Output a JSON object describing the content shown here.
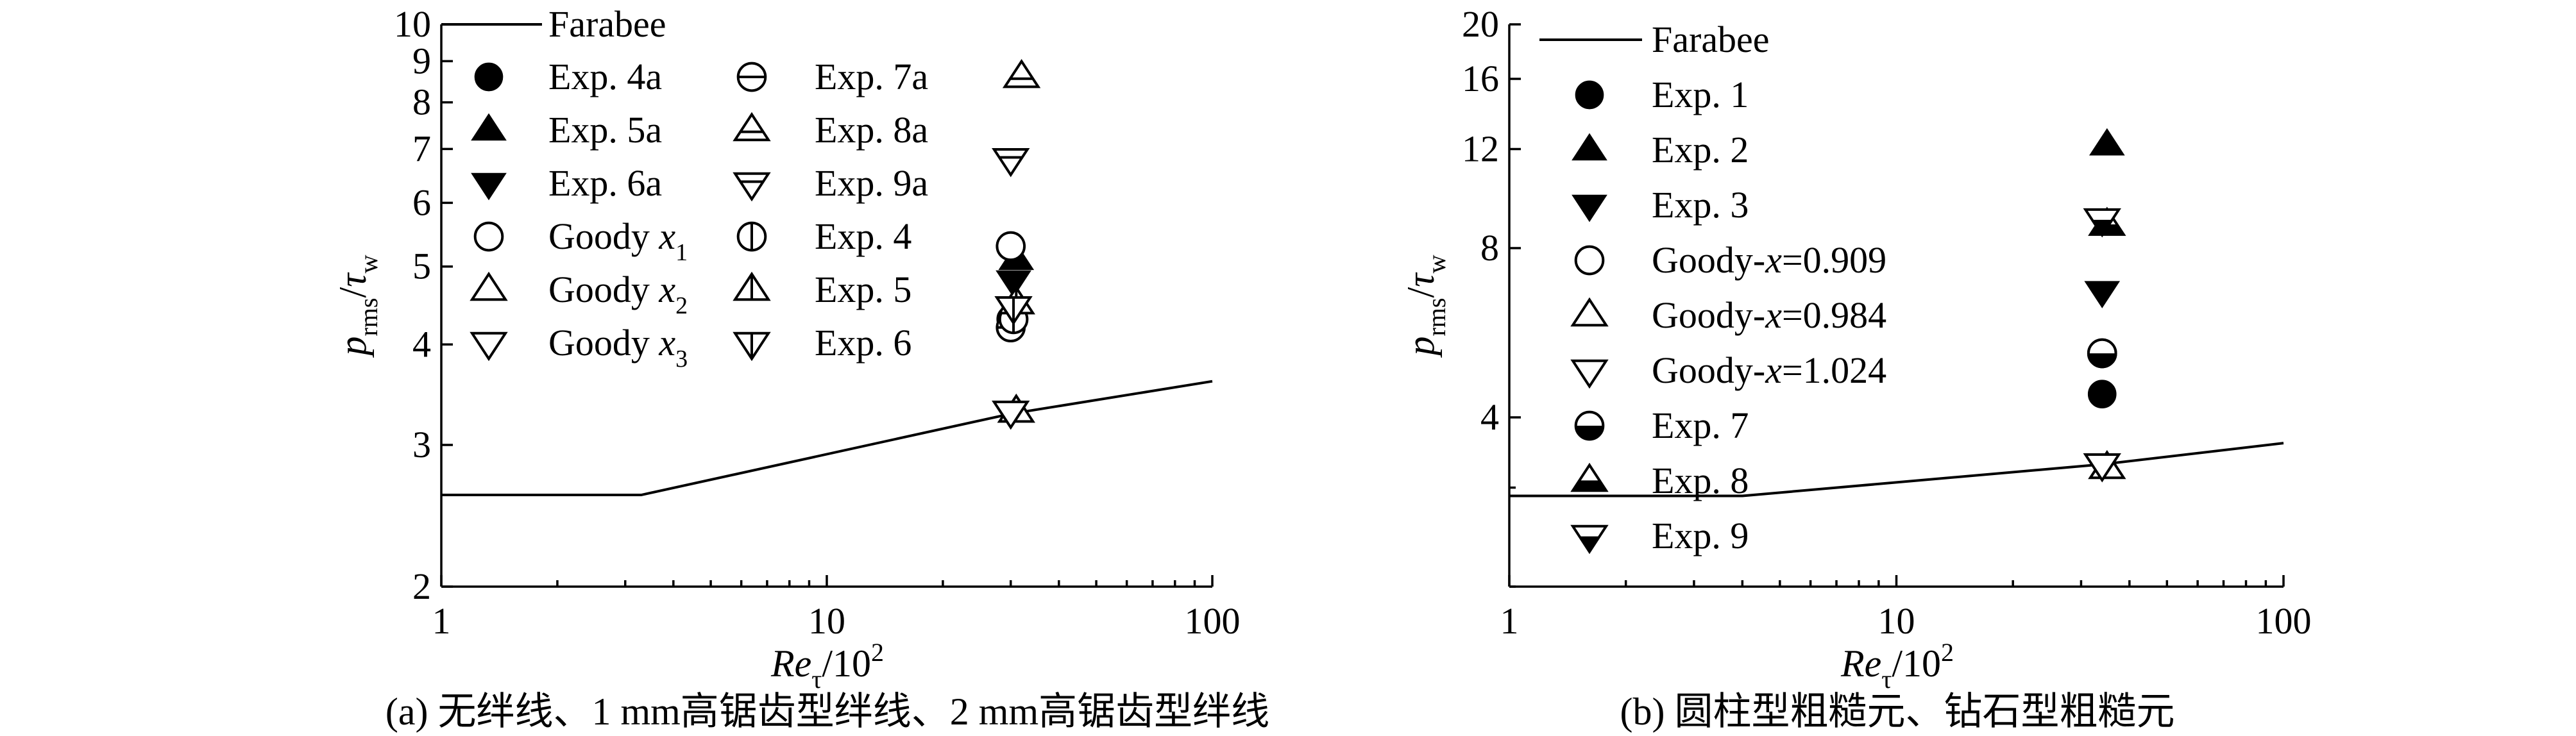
{
  "chart_data": [
    {
      "type": "scatter",
      "panel_caption": "(a) 无绊线、1 mm高锯齿型绊线、2 mm高锯齿型绊线",
      "xlabel": {
        "main": "Re",
        "sub": "τ",
        "tail": "/10",
        "sup": "2"
      },
      "ylabel": {
        "main": "p",
        "sub1": "rms",
        "slash": "/",
        "tau": "τ",
        "sub2": "w"
      },
      "x_scale": "log",
      "y_scale": "log",
      "xlim": [
        1,
        100
      ],
      "ylim": [
        2,
        10
      ],
      "x_ticks": [
        "1",
        "10",
        "100"
      ],
      "y_ticks": [
        "2",
        "3",
        "4",
        "5",
        "6",
        "7",
        "8",
        "9",
        "10"
      ],
      "grid": false,
      "legend_position": "top-left, inside, two columns",
      "curve": {
        "name": "Farabee",
        "points": [
          [
            1,
            2.6
          ],
          [
            3.3,
            2.6
          ],
          [
            30,
            3.28
          ],
          [
            100,
            3.6
          ]
        ]
      },
      "legend_left": [
        {
          "label": "Exp. 4a",
          "marker": "filled-circle"
        },
        {
          "label": "Exp. 5a",
          "marker": "filled-triangle-up"
        },
        {
          "label": "Exp. 6a",
          "marker": "filled-triangle-down"
        },
        {
          "label": "Goody ",
          "italic": "x",
          "sub": "1",
          "marker": "open-circle"
        },
        {
          "label": "Goody ",
          "italic": "x",
          "sub": "2",
          "marker": "open-triangle-up"
        },
        {
          "label": "Goody ",
          "italic": "x",
          "sub": "3",
          "marker": "open-triangle-down"
        }
      ],
      "legend_right": [
        {
          "label": "Exp. 7a",
          "marker": "circle-hbar"
        },
        {
          "label": "Exp. 8a",
          "marker": "triangle-up-hbar"
        },
        {
          "label": "Exp. 9a",
          "marker": "triangle-down-hbar"
        },
        {
          "label": "Exp. 4",
          "marker": "circle-vbar"
        },
        {
          "label": "Exp. 5",
          "marker": "triangle-up-vbar"
        },
        {
          "label": "Exp. 6",
          "marker": "triangle-down-vbar"
        }
      ],
      "series": [
        {
          "marker": "filled-circle",
          "x": 30,
          "y": 4.3
        },
        {
          "marker": "filled-triangle-up",
          "x": 31,
          "y": 5.1
        },
        {
          "marker": "filled-triangle-down",
          "x": 30.5,
          "y": 4.8
        },
        {
          "marker": "open-circle",
          "x": 30,
          "y": 5.3
        },
        {
          "marker": "open-triangle-up",
          "x": 31,
          "y": 3.3
        },
        {
          "marker": "open-triangle-down",
          "x": 30,
          "y": 3.3
        },
        {
          "marker": "circle-hbar",
          "x": 30,
          "y": 4.2
        },
        {
          "marker": "triangle-up-hbar",
          "x": 32,
          "y": 8.6
        },
        {
          "marker": "triangle-down-hbar",
          "x": 30,
          "y": 6.8
        },
        {
          "marker": "circle-vbar",
          "x": 30.5,
          "y": 4.3
        },
        {
          "marker": "triangle-up-vbar",
          "x": 31,
          "y": 4.5
        },
        {
          "marker": "triangle-down-vbar",
          "x": 30.5,
          "y": 4.45
        }
      ]
    },
    {
      "type": "scatter",
      "panel_caption": "(b) 圆柱型粗糙元、钻石型粗糙元",
      "xlabel": {
        "main": "Re",
        "sub": "τ",
        "tail": "/10",
        "sup": "2"
      },
      "ylabel": {
        "main": "p",
        "sub1": "rms",
        "slash": "/",
        "tau": "τ",
        "sub2": "w"
      },
      "x_scale": "log",
      "y_scale": "log",
      "xlim": [
        1,
        100
      ],
      "ylim": [
        2,
        20
      ],
      "x_ticks": [
        "1",
        "10",
        "100"
      ],
      "y_ticks": [
        "4",
        "8",
        "12",
        "16",
        "20"
      ],
      "grid": false,
      "legend_position": "top-left, inside",
      "curve": {
        "name": "Farabee",
        "points": [
          [
            1,
            2.9
          ],
          [
            4,
            2.9
          ],
          [
            34,
            3.3
          ],
          [
            100,
            3.6
          ]
        ]
      },
      "legend": [
        {
          "label": "Exp. 1",
          "marker": "filled-circle"
        },
        {
          "label": "Exp. 2",
          "marker": "filled-triangle-up"
        },
        {
          "label": "Exp. 3",
          "marker": "filled-triangle-down"
        },
        {
          "label": "Goody-",
          "italic": "x",
          "tail": "=0.909",
          "marker": "open-circle"
        },
        {
          "label": "Goody-",
          "italic": "x",
          "tail": "=0.984",
          "marker": "open-triangle-up"
        },
        {
          "label": "Goody-",
          "italic": "x",
          "tail": "=1.024",
          "marker": "open-triangle-down"
        },
        {
          "label": "Exp. 7",
          "marker": "half-circle"
        },
        {
          "label": "Exp. 8",
          "marker": "half-triangle-up"
        },
        {
          "label": "Exp. 9",
          "marker": "half-triangle-down"
        }
      ],
      "series": [
        {
          "marker": "filled-circle",
          "x": 34,
          "y": 4.4
        },
        {
          "marker": "filled-triangle-up",
          "x": 35,
          "y": 12.2
        },
        {
          "marker": "filled-triangle-down",
          "x": 34,
          "y": 6.7
        },
        {
          "marker": "open-circle",
          "x": 34,
          "y": 5.2
        },
        {
          "marker": "open-triangle-up",
          "x": 35,
          "y": 3.25
        },
        {
          "marker": "open-triangle-down",
          "x": 34,
          "y": 3.3
        },
        {
          "marker": "half-circle",
          "x": 34,
          "y": 5.2
        },
        {
          "marker": "half-triangle-up",
          "x": 35,
          "y": 8.8
        },
        {
          "marker": "half-triangle-down",
          "x": 34,
          "y": 9.0
        }
      ]
    }
  ]
}
